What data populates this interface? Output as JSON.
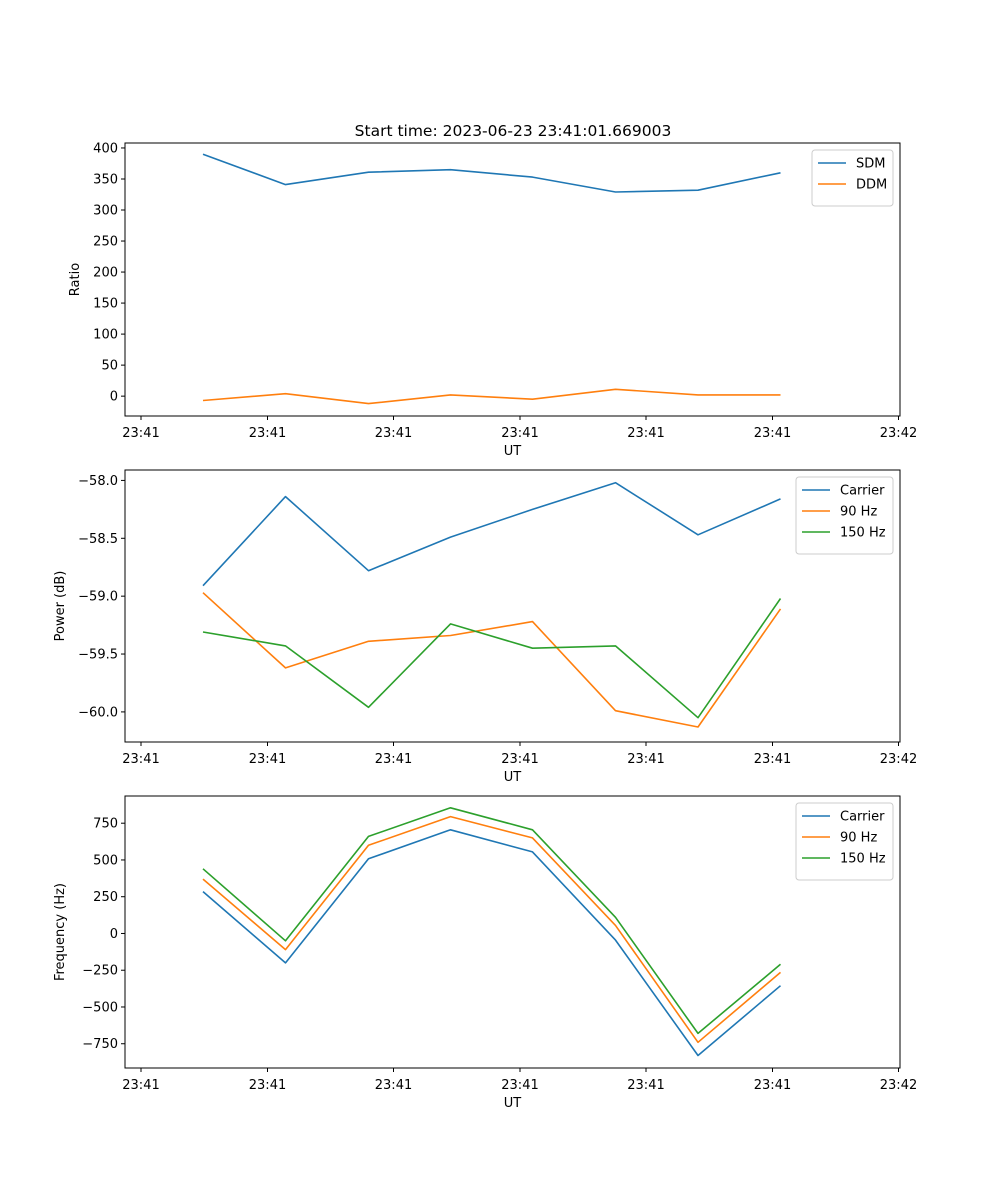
{
  "title": "Start time: 2023-06-23 23:41:01.669003",
  "colors": {
    "blue": "#1f77b4",
    "orange": "#ff7f0e",
    "green": "#2ca02c"
  },
  "chart_data": [
    {
      "type": "line",
      "x_tick_labels": [
        "23:41",
        "23:41",
        "23:41",
        "23:41",
        "23:41",
        "23:41",
        "23:41"
      ],
      "x_tick_last": "23:42",
      "xlabel": "UT",
      "ylabel": "Ratio",
      "ylim": [
        -32,
        408
      ],
      "yticks": [
        0,
        50,
        100,
        150,
        200,
        250,
        300,
        350,
        400
      ],
      "ytick_labels": [
        "0",
        "50",
        "100",
        "150",
        "200",
        "250",
        "300",
        "350",
        "400"
      ],
      "legend_position": "upper right",
      "series": [
        {
          "name": "SDM",
          "color": "#1f77b4",
          "values": [
            390,
            341,
            361,
            365,
            353,
            329,
            332,
            360
          ]
        },
        {
          "name": "DDM",
          "color": "#ff7f0e",
          "values": [
            -7,
            4,
            -12,
            2,
            -5,
            11,
            2,
            2
          ]
        }
      ]
    },
    {
      "type": "line",
      "x_tick_labels": [
        "23:41",
        "23:41",
        "23:41",
        "23:41",
        "23:41",
        "23:41",
        "23:41"
      ],
      "x_tick_last": "23:42",
      "xlabel": "UT",
      "ylabel": "Power (dB)",
      "ylim": [
        -60.26,
        -57.91
      ],
      "yticks": [
        -60.0,
        -59.5,
        -59.0,
        -58.5,
        -58.0
      ],
      "ytick_labels": [
        "−60.0",
        "−59.5",
        "−59.0",
        "−58.5",
        "−58.0"
      ],
      "legend_position": "upper right",
      "series": [
        {
          "name": "Carrier",
          "color": "#1f77b4",
          "values": [
            -58.91,
            -58.14,
            -58.78,
            -58.49,
            -58.25,
            -58.02,
            -58.47,
            -58.16
          ]
        },
        {
          "name": "90 Hz",
          "color": "#ff7f0e",
          "values": [
            -58.97,
            -59.62,
            -59.39,
            -59.34,
            -59.22,
            -59.99,
            -60.13,
            -59.11
          ]
        },
        {
          "name": "150 Hz",
          "color": "#2ca02c",
          "values": [
            -59.31,
            -59.43,
            -59.96,
            -59.24,
            -59.45,
            -59.43,
            -60.05,
            -59.02
          ]
        }
      ]
    },
    {
      "type": "line",
      "x_tick_labels": [
        "23:41",
        "23:41",
        "23:41",
        "23:41",
        "23:41",
        "23:41",
        "23:41"
      ],
      "x_tick_last": "23:42",
      "xlabel": "UT",
      "ylabel": "Frequency (Hz)",
      "ylim": [
        -915,
        935
      ],
      "yticks": [
        -750,
        -500,
        -250,
        0,
        250,
        500,
        750
      ],
      "ytick_labels": [
        "−750",
        "−500",
        "−250",
        "0",
        "250",
        "500",
        "750"
      ],
      "legend_position": "upper right",
      "series": [
        {
          "name": "Carrier",
          "color": "#1f77b4",
          "values": [
            285,
            -200,
            508,
            705,
            555,
            -45,
            -830,
            -355
          ]
        },
        {
          "name": "90 Hz",
          "color": "#ff7f0e",
          "values": [
            370,
            -110,
            600,
            795,
            650,
            55,
            -740,
            -265
          ]
        },
        {
          "name": "150 Hz",
          "color": "#2ca02c",
          "values": [
            440,
            -50,
            660,
            855,
            705,
            110,
            -680,
            -210
          ]
        }
      ]
    }
  ]
}
